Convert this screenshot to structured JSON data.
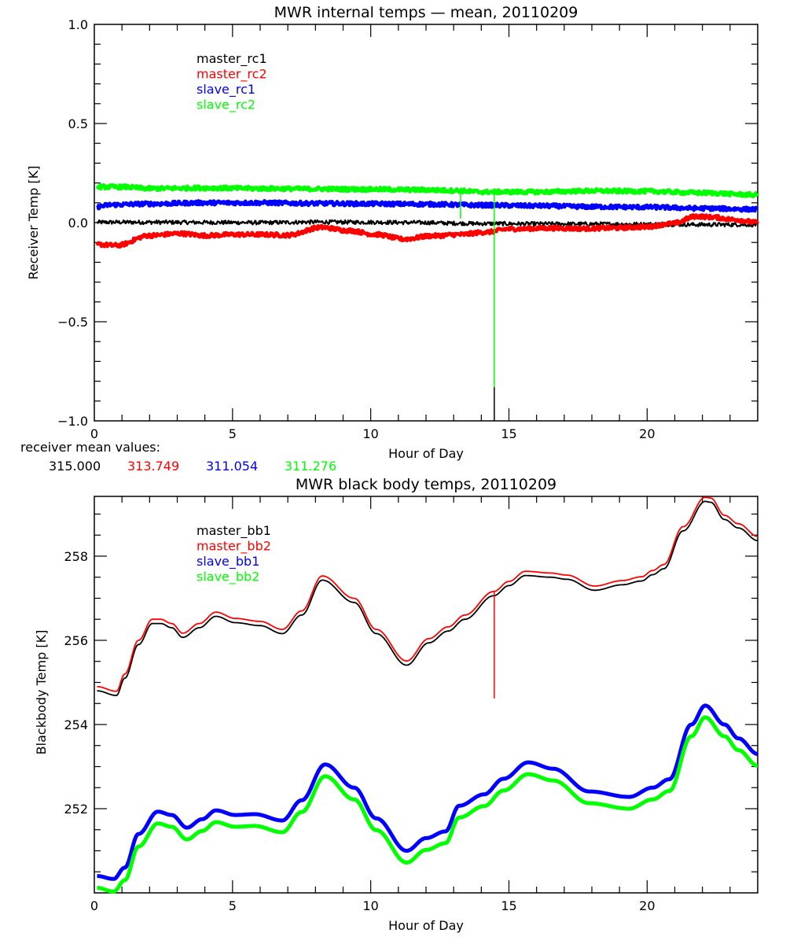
{
  "chart_data": [
    {
      "type": "line",
      "title": "MWR internal temps — mean, 20110209",
      "xlabel": "Hour of Day",
      "ylabel": "Receiver Temp [K]",
      "xlim": [
        0,
        24
      ],
      "ylim": [
        -1.0,
        1.0
      ],
      "xticks": [
        0,
        5,
        10,
        15,
        20
      ],
      "xtick_labels": [
        "0",
        "5",
        "10",
        "15",
        "20"
      ],
      "yticks": [
        -1.0,
        -0.5,
        0.0,
        0.5,
        1.0
      ],
      "ytick_labels": [
        "−1.0",
        "−0.5",
        "0.0",
        "0.5",
        "1.0"
      ],
      "grid": false,
      "legend_position": "top-left",
      "series": [
        {
          "name": "master_rc1",
          "color": "#000000",
          "noisy": true,
          "x": [
            0.1,
            2,
            4,
            6,
            8,
            10,
            12,
            13,
            14,
            16,
            18,
            20,
            22,
            24
          ],
          "y": [
            0.002,
            0.002,
            0.001,
            0.0,
            0.003,
            0.002,
            0.0,
            -0.003,
            -0.005,
            -0.006,
            -0.007,
            -0.008,
            -0.01,
            -0.01
          ]
        },
        {
          "name": "master_rc2",
          "color": "#ff0000",
          "noisy": true,
          "x": [
            0.1,
            0.8,
            2.0,
            3.1,
            4.0,
            5.1,
            6.0,
            7.0,
            8.2,
            9.2,
            10.2,
            11.2,
            12.2,
            13.2,
            14.2,
            15.0,
            16.5,
            17.6,
            18.8,
            19.9,
            20.9,
            21.8,
            22.3,
            23.2,
            24.0
          ],
          "y": [
            -0.11,
            -0.115,
            -0.065,
            -0.055,
            -0.065,
            -0.06,
            -0.06,
            -0.063,
            -0.024,
            -0.04,
            -0.06,
            -0.083,
            -0.067,
            -0.06,
            -0.048,
            -0.032,
            -0.028,
            -0.03,
            -0.027,
            -0.022,
            -0.005,
            0.032,
            0.028,
            0.015,
            0.0
          ]
        },
        {
          "name": "slave_rc1",
          "color": "#0000ff",
          "noisy": true,
          "x": [
            0.1,
            0.6,
            2,
            4,
            6,
            8,
            10,
            12,
            14,
            16,
            18,
            20,
            22,
            24
          ],
          "y": [
            0.08,
            0.09,
            0.095,
            0.1,
            0.1,
            0.097,
            0.095,
            0.093,
            0.088,
            0.085,
            0.08,
            0.078,
            0.072,
            0.067
          ]
        },
        {
          "name": "slave_rc2",
          "color": "#00ff00",
          "noisy": true,
          "x": [
            0.1,
            1,
            2,
            4,
            6,
            8,
            10,
            12,
            13,
            14,
            16,
            18,
            20,
            22,
            24
          ],
          "y": [
            0.18,
            0.18,
            0.172,
            0.175,
            0.172,
            0.17,
            0.168,
            0.165,
            0.162,
            0.155,
            0.155,
            0.16,
            0.158,
            0.15,
            0.14
          ]
        }
      ],
      "spikes": [
        {
          "series": "slave_rc2",
          "x": 13.25,
          "y_from": 0.155,
          "y_to": 0.02,
          "color": "#00ff00"
        },
        {
          "series": "slave_rc2",
          "x": 14.47,
          "y_from": 0.155,
          "y_to": -0.83,
          "color": "#00ff00"
        },
        {
          "series": "master_rc1",
          "x": 14.47,
          "y_from": -0.83,
          "y_to": -1.0,
          "color": "#000000"
        }
      ],
      "annotation": {
        "label": "receiver mean values:",
        "values": [
          {
            "text": "315.000",
            "color": "#000000"
          },
          {
            "text": "313.749",
            "color": "#ff0000"
          },
          {
            "text": "311.054",
            "color": "#0000ff"
          },
          {
            "text": "311.276",
            "color": "#00ff00"
          }
        ]
      }
    },
    {
      "type": "line",
      "title": "MWR black body temps, 20110209",
      "xlabel": "Hour of Day",
      "ylabel": "Blackbody Temp [K]",
      "xlim": [
        0,
        24
      ],
      "ylim": [
        250.0,
        259.42
      ],
      "xticks": [
        0,
        5,
        10,
        15,
        20
      ],
      "xtick_labels": [
        "0",
        "5",
        "10",
        "15",
        "20"
      ],
      "yticks": [
        252,
        254,
        256,
        258
      ],
      "ytick_labels": [
        "252",
        "254",
        "256",
        "258"
      ],
      "grid": false,
      "legend_position": "top-left",
      "series": [
        {
          "name": "master_bb1",
          "color": "#000000",
          "thick": false,
          "x": [
            0.1,
            0.8,
            1.1,
            1.6,
            2.1,
            2.4,
            2.8,
            3.2,
            3.8,
            4.4,
            5.1,
            6.0,
            6.8,
            7.5,
            8.25,
            9.4,
            10.2,
            11.3,
            12.1,
            12.8,
            13.4,
            14.45,
            15.0,
            15.6,
            16.5,
            17.1,
            18.1,
            19.1,
            19.8,
            20.2,
            20.6,
            21.3,
            22.1,
            22.3,
            22.8,
            23.3,
            24.0
          ],
          "y": [
            254.8,
            254.69,
            255.1,
            255.9,
            256.4,
            256.4,
            256.3,
            256.07,
            256.3,
            256.57,
            256.42,
            256.35,
            256.16,
            256.6,
            257.43,
            256.9,
            256.16,
            255.41,
            255.94,
            256.22,
            256.5,
            257.06,
            257.3,
            257.54,
            257.5,
            257.45,
            257.19,
            257.32,
            257.41,
            257.56,
            257.7,
            258.6,
            259.3,
            259.28,
            258.87,
            258.67,
            258.37
          ]
        },
        {
          "name": "master_bb2",
          "color": "#ff0000",
          "thick": false,
          "x": [
            0.1,
            0.8,
            1.1,
            1.6,
            2.1,
            2.4,
            2.8,
            3.2,
            3.8,
            4.4,
            5.1,
            6.0,
            6.8,
            7.5,
            8.25,
            9.4,
            10.2,
            11.3,
            12.1,
            12.8,
            13.4,
            14.45,
            15.0,
            15.6,
            16.5,
            17.1,
            18.1,
            19.1,
            19.8,
            20.2,
            20.6,
            21.3,
            22.1,
            22.3,
            22.8,
            23.3,
            24.0
          ],
          "y": [
            254.9,
            254.79,
            255.2,
            256.0,
            256.5,
            256.5,
            256.4,
            256.17,
            256.4,
            256.67,
            256.52,
            256.45,
            256.26,
            256.7,
            257.53,
            257.0,
            256.26,
            255.51,
            256.04,
            256.32,
            256.6,
            257.16,
            257.4,
            257.64,
            257.6,
            257.55,
            257.29,
            257.42,
            257.51,
            257.66,
            257.8,
            258.7,
            259.4,
            259.38,
            258.97,
            258.77,
            258.47
          ]
        },
        {
          "name": "slave_bb1",
          "color": "#0000ff",
          "thick": true,
          "x": [
            0.1,
            0.7,
            1.1,
            1.6,
            2.3,
            2.8,
            3.35,
            3.9,
            4.4,
            5.1,
            5.8,
            6.8,
            7.5,
            8.35,
            9.4,
            10.2,
            11.3,
            12.0,
            12.7,
            13.2,
            14.1,
            14.8,
            15.7,
            16.6,
            17.9,
            19.35,
            20.2,
            20.8,
            21.6,
            22.1,
            22.8,
            23.3,
            24.0
          ],
          "y": [
            250.4,
            250.33,
            250.6,
            251.4,
            251.93,
            251.85,
            251.55,
            251.75,
            251.96,
            251.85,
            251.87,
            251.72,
            252.2,
            253.05,
            252.5,
            251.77,
            251.0,
            251.3,
            251.46,
            252.07,
            252.34,
            252.71,
            253.1,
            252.95,
            252.41,
            252.28,
            252.5,
            252.7,
            254.0,
            254.45,
            254.0,
            253.67,
            253.3
          ]
        },
        {
          "name": "slave_bb2",
          "color": "#00ff00",
          "thick": true,
          "x": [
            0.1,
            0.7,
            1.1,
            1.6,
            2.3,
            2.8,
            3.35,
            3.9,
            4.4,
            5.1,
            5.8,
            6.8,
            7.5,
            8.35,
            9.4,
            10.2,
            11.3,
            12.0,
            12.7,
            13.2,
            14.1,
            14.8,
            15.7,
            16.6,
            17.9,
            19.35,
            20.2,
            20.8,
            21.6,
            22.1,
            22.8,
            23.3,
            24.0
          ],
          "y": [
            250.12,
            250.03,
            250.3,
            251.1,
            251.65,
            251.57,
            251.27,
            251.47,
            251.68,
            251.57,
            251.59,
            251.44,
            251.92,
            252.77,
            252.22,
            251.49,
            250.72,
            251.02,
            251.18,
            251.79,
            252.06,
            252.43,
            252.82,
            252.67,
            252.13,
            252.0,
            252.22,
            252.42,
            253.72,
            254.17,
            253.72,
            253.39,
            253.02
          ]
        }
      ],
      "spikes": [
        {
          "series": "master_bb2",
          "x": 14.47,
          "y_from": 257.16,
          "y_to": 254.62,
          "color": "#ff0000"
        }
      ]
    }
  ]
}
